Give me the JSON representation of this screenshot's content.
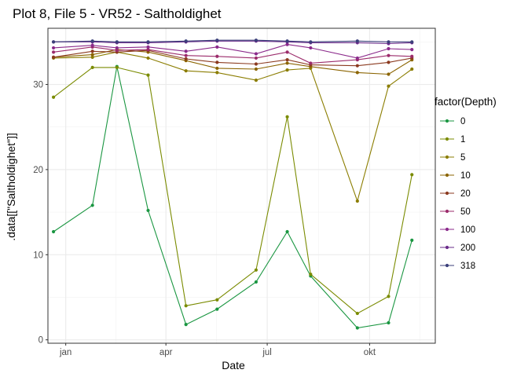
{
  "chart_data": {
    "type": "line",
    "title": "Plot 8, File 5 - VR52  -  Saltholdighet",
    "xlabel": "Date",
    "ylabel": ".data[[\"Saltholdighet\"]]",
    "x_ticks": [
      {
        "label": "jan",
        "value": "2021-01-01"
      },
      {
        "label": "apr",
        "value": "2021-04-01"
      },
      {
        "label": "jul",
        "value": "2021-07-01"
      },
      {
        "label": "okt",
        "value": "2021-10-01"
      }
    ],
    "xlim": [
      "2020-12-16",
      "2021-11-29"
    ],
    "y_ticks": [
      0,
      10,
      20,
      30
    ],
    "ylim": [
      -0.4,
      36.6
    ],
    "grid": true,
    "legend": {
      "title": "factor(Depth)",
      "position": "right"
    },
    "x": [
      "2020-12-21",
      "2021-01-25",
      "2021-02-16",
      "2021-03-16",
      "2021-04-19",
      "2021-05-17",
      "2021-06-21",
      "2021-07-19",
      "2021-08-09",
      "2021-09-20",
      "2021-10-18",
      "2021-11-08"
    ],
    "series": [
      {
        "name": "0",
        "color": "#1a9641",
        "values": [
          12.7,
          15.8,
          32.1,
          15.2,
          1.8,
          3.6,
          6.8,
          12.7,
          7.5,
          1.4,
          2.0,
          11.7
        ]
      },
      {
        "name": "1",
        "color": "#7a8b00",
        "values": [
          28.5,
          32.0,
          32.0,
          31.1,
          4.0,
          4.7,
          8.2,
          26.2,
          7.7,
          3.1,
          5.1,
          19.4
        ]
      },
      {
        "name": "5",
        "color": "#8b7d00",
        "values": [
          33.1,
          33.2,
          33.8,
          33.1,
          31.6,
          31.4,
          30.5,
          31.7,
          31.9,
          16.3,
          29.8,
          31.8
        ]
      },
      {
        "name": "10",
        "color": "#8b6400",
        "values": [
          33.2,
          33.5,
          34.1,
          33.8,
          32.8,
          31.9,
          31.8,
          32.5,
          32.1,
          31.4,
          31.2,
          32.9
        ]
      },
      {
        "name": "20",
        "color": "#8b3a1f",
        "values": [
          33.2,
          33.9,
          33.8,
          34.0,
          33.0,
          32.6,
          32.4,
          32.9,
          32.3,
          32.2,
          32.6,
          33.1
        ]
      },
      {
        "name": "50",
        "color": "#9b2b6b",
        "values": [
          33.8,
          34.4,
          34.0,
          34.1,
          33.4,
          33.3,
          33.1,
          33.8,
          32.5,
          32.9,
          33.4,
          33.3
        ]
      },
      {
        "name": "100",
        "color": "#8b2a8b",
        "values": [
          34.3,
          34.6,
          34.3,
          34.4,
          33.9,
          34.4,
          33.6,
          34.7,
          34.3,
          33.1,
          34.2,
          34.1
        ]
      },
      {
        "name": "200",
        "color": "#6a2b8a",
        "values": [
          35.0,
          35.0,
          34.9,
          34.9,
          35.0,
          35.1,
          35.1,
          35.0,
          34.9,
          34.9,
          34.8,
          34.9
        ]
      },
      {
        "name": "318",
        "color": "#3b3f7a",
        "values": [
          35.0,
          35.1,
          35.0,
          35.0,
          35.1,
          35.2,
          35.2,
          35.1,
          35.0,
          35.1,
          35.0,
          35.0
        ]
      }
    ]
  }
}
